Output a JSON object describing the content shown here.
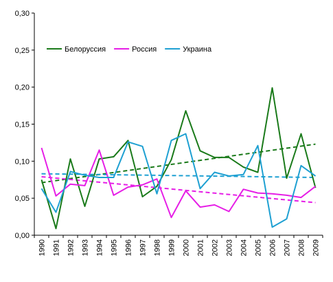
{
  "chart_data": {
    "type": "line",
    "title": "",
    "xlabel": "",
    "ylabel": "",
    "x": [
      "1990",
      "1991",
      "1992",
      "1993",
      "1994",
      "1995",
      "1996",
      "1997",
      "1998",
      "1999",
      "2000",
      "2001",
      "2002",
      "2003",
      "2004",
      "2005",
      "2006",
      "2007",
      "2008",
      "2009"
    ],
    "ylim": [
      0,
      0.3
    ],
    "yticks": [
      "0,00",
      "0,05",
      "0,10",
      "0,15",
      "0,20",
      "0,25",
      "0,30"
    ],
    "grid": false,
    "legend_position": "top-left",
    "series": [
      {
        "name": "Белоруссия",
        "color": "#1a7a1a",
        "values": [
          0.075,
          0.009,
          0.103,
          0.039,
          0.103,
          0.106,
          0.128,
          0.052,
          0.066,
          0.102,
          0.168,
          0.114,
          0.105,
          0.105,
          0.092,
          0.085,
          0.199,
          0.077,
          0.137,
          0.064
        ],
        "trend": [
          0.071,
          0.123
        ]
      },
      {
        "name": "Россия",
        "color": "#e61ee6",
        "values": [
          0.118,
          0.053,
          0.069,
          0.067,
          0.115,
          0.054,
          0.065,
          0.068,
          0.076,
          0.024,
          0.06,
          0.038,
          0.041,
          0.032,
          0.062,
          0.057,
          0.056,
          0.054,
          0.051,
          0.066
        ],
        "trend": [
          0.079,
          0.044
        ]
      },
      {
        "name": "Украина",
        "color": "#1ea0d2",
        "values": [
          0.063,
          0.031,
          0.086,
          0.081,
          0.078,
          0.078,
          0.126,
          0.12,
          0.056,
          0.128,
          0.137,
          0.063,
          0.085,
          0.08,
          0.082,
          0.121,
          0.011,
          0.022,
          0.094,
          0.08
        ],
        "trend": [
          0.083,
          0.078
        ]
      }
    ]
  }
}
